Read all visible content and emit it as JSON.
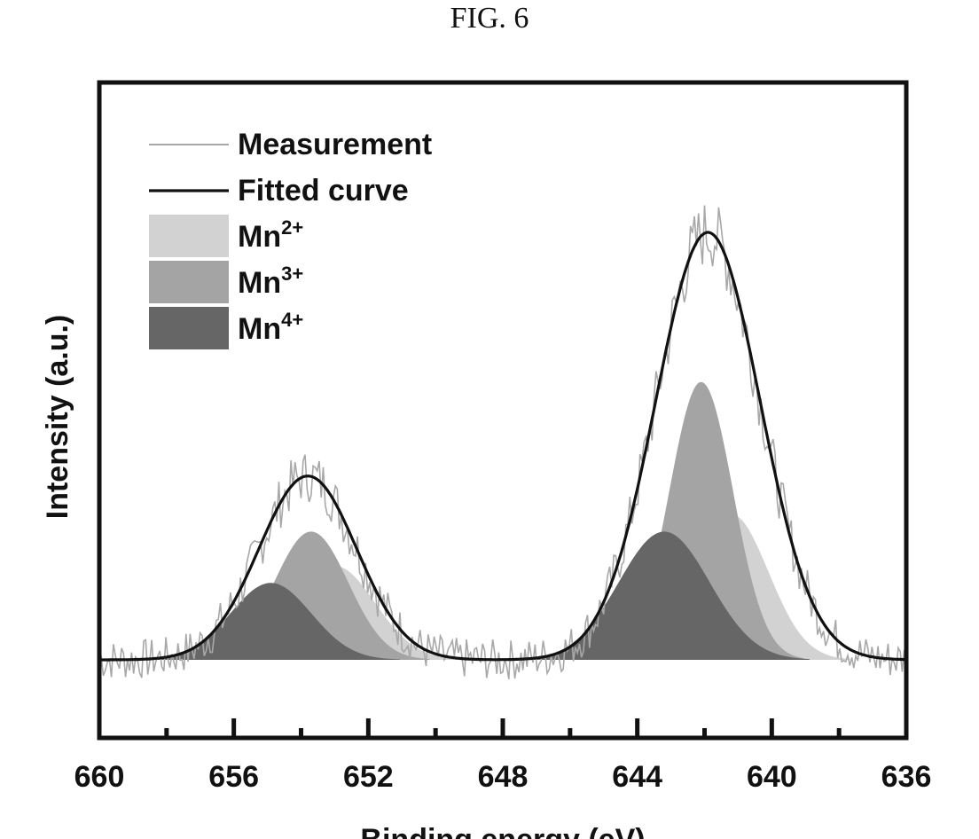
{
  "figure_label": "FIG. 6",
  "colors": {
    "measurement": "#a8a8a8",
    "fitted": "#111111",
    "mn2": "#d2d2d2",
    "mn3": "#a4a4a4",
    "mn4": "#666666",
    "axis": "#111111"
  },
  "chart_data": {
    "type": "line",
    "title": "",
    "xlabel": "Binding energy (eV)",
    "ylabel": "Intensity (a.u.)",
    "xlim": [
      660,
      636
    ],
    "x_reversed": true,
    "ylim": [
      -0.2,
      1.2
    ],
    "xticks": [
      660,
      656,
      652,
      648,
      644,
      640,
      636
    ],
    "xtick_labels": [
      "660",
      "656",
      "652",
      "648",
      "644",
      "640",
      "636"
    ],
    "minor_xticks": [
      658,
      654,
      650,
      646,
      642,
      638
    ],
    "legend_position": "top-left",
    "legend": [
      {
        "key": "measurement",
        "type": "line",
        "label": "Measurement",
        "sup": ""
      },
      {
        "key": "fitted",
        "type": "line",
        "label": "Fitted curve",
        "sup": ""
      },
      {
        "key": "mn2",
        "type": "fill",
        "label": "Mn",
        "sup": "2+"
      },
      {
        "key": "mn3",
        "type": "fill",
        "label": "Mn",
        "sup": "3+"
      },
      {
        "key": "mn4",
        "type": "fill",
        "label": "Mn",
        "sup": "4+"
      }
    ],
    "components": [
      {
        "name": "Mn2+",
        "key": "mn2",
        "peaks": [
          {
            "center": 653.0,
            "height": 0.22,
            "sigma": 1.2
          },
          {
            "center": 641.2,
            "height": 0.34,
            "sigma": 1.1
          }
        ]
      },
      {
        "name": "Mn3+",
        "key": "mn3",
        "peaks": [
          {
            "center": 653.7,
            "height": 0.3,
            "sigma": 1.1
          },
          {
            "center": 642.1,
            "height": 0.65,
            "sigma": 0.95
          }
        ]
      },
      {
        "name": "Mn4+",
        "key": "mn4",
        "peaks": [
          {
            "center": 654.9,
            "height": 0.18,
            "sigma": 1.2
          },
          {
            "center": 643.2,
            "height": 0.3,
            "sigma": 1.35
          }
        ]
      }
    ],
    "fitted_curve": {
      "name": "Fitted curve",
      "peaks": [
        {
          "center": 653.8,
          "height": 0.43,
          "sigma": 1.45
        },
        {
          "center": 641.9,
          "height": 1.0,
          "sigma": 1.55
        }
      ]
    },
    "measurement_noise_amplitude": 0.06
  }
}
